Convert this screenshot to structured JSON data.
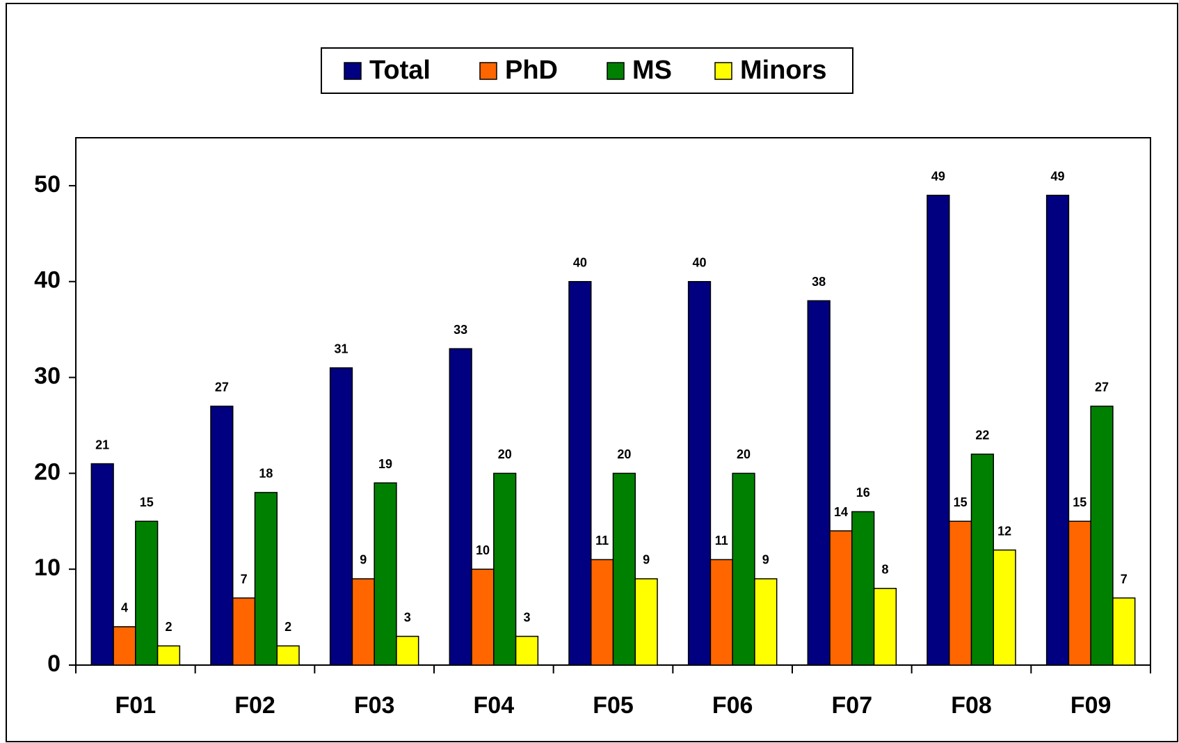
{
  "chart_data": {
    "type": "bar",
    "categories": [
      "F01",
      "F02",
      "F03",
      "F04",
      "F05",
      "F06",
      "F07",
      "F08",
      "F09"
    ],
    "series": [
      {
        "name": "Total",
        "color": "#000080",
        "values": [
          21,
          27,
          31,
          33,
          40,
          40,
          38,
          49,
          49
        ]
      },
      {
        "name": "PhD",
        "color": "#ff6600",
        "values": [
          4,
          7,
          9,
          10,
          11,
          11,
          14,
          15,
          15
        ]
      },
      {
        "name": "MS",
        "color": "#008000",
        "values": [
          15,
          18,
          19,
          20,
          20,
          20,
          16,
          22,
          27
        ]
      },
      {
        "name": "Minors",
        "color": "#ffff00",
        "values": [
          2,
          2,
          3,
          3,
          9,
          9,
          8,
          12,
          7
        ]
      }
    ],
    "ylim": [
      0,
      55
    ],
    "yticks": [
      0,
      10,
      20,
      30,
      40,
      50
    ],
    "legend": "top"
  }
}
